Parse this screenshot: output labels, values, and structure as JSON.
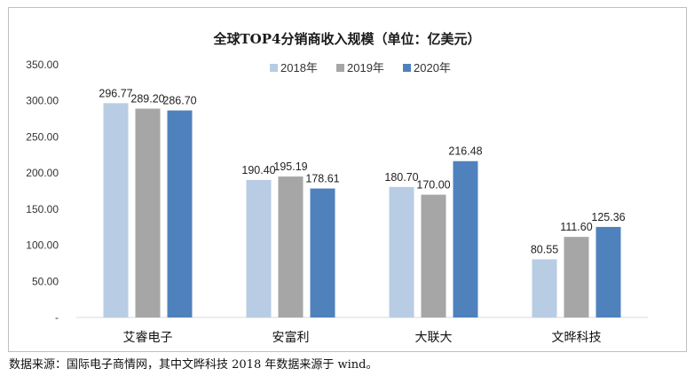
{
  "chart_data": {
    "type": "bar",
    "title": "全球TOP4分销商收入规模（单位：亿美元）",
    "categories": [
      "艾睿电子",
      "安富利",
      "大联大",
      "文晔科技"
    ],
    "series": [
      {
        "name": "2018年",
        "color": "#b8cce4",
        "values": [
          296.77,
          190.4,
          180.7,
          80.55
        ],
        "labels": [
          "296.77",
          "190.40",
          "180.70",
          "80.55"
        ]
      },
      {
        "name": "2019年",
        "color": "#a6a6a6",
        "values": [
          289.2,
          195.19,
          170.0,
          111.6
        ],
        "labels": [
          "289.20",
          "195.19",
          "170.00",
          "111.60"
        ]
      },
      {
        "name": "2020年",
        "color": "#4f81bd",
        "values": [
          286.7,
          178.61,
          216.48,
          125.36
        ],
        "labels": [
          "286.70",
          "178.61",
          "216.48",
          "125.36"
        ]
      }
    ],
    "ylim": [
      0,
      350
    ],
    "yticks": [
      "-",
      "50.00",
      "100.00",
      "150.00",
      "200.00",
      "250.00",
      "300.00",
      "350.00"
    ],
    "grid": false,
    "legend_position": "top-right"
  },
  "source_note": "数据来源：国际电子商情网，其中文晔科技 2018 年数据来源于 wind。"
}
